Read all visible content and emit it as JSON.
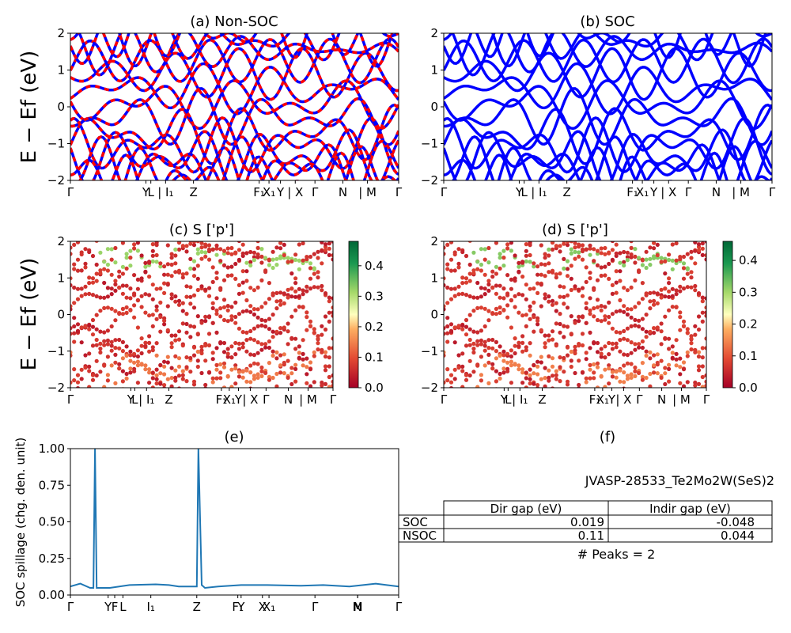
{
  "material_id": "JVASP-28533_Te2Mo2W(SeS)2",
  "colors": {
    "nonsoc_up": "#ff0000",
    "nonsoc_dn": "#0000ff",
    "soc": "#0000ff",
    "spillage": "#1f77b4"
  },
  "axis_labels": {
    "band_ylabel": "E − Ef (eV)",
    "spillage_ylabel": "SOC spillage (chg. den. unit)"
  },
  "kpath_labels": [
    "Γ",
    "Y|L",
    "L|I1",
    "Z",
    "F1",
    "X1",
    "Y|X",
    "Γ",
    "N|M",
    "Γ"
  ],
  "chart_data": [
    {
      "type": "line",
      "title": "(a) Non-SOC",
      "xlabel": "",
      "ylabel": "E − Ef (eV)",
      "ylim": [
        -2,
        2
      ],
      "yticks": [
        "−2",
        "−1",
        "0",
        "1",
        "2"
      ],
      "xticks": [
        "Γ",
        "YL",
        "L",
        "I1",
        "Z",
        "F1",
        "X1",
        "Y",
        "X",
        "Γ",
        "N",
        "M",
        "Γ"
      ],
      "series": [
        {
          "values": "bands"
        },
        {
          "values": "bands"
        }
      ],
      "notes_visible": "dashed red/blue bands"
    },
    {
      "type": "line",
      "title": "(b) SOC",
      "xlabel": "",
      "ylabel": "",
      "ylim": [
        -2,
        2
      ],
      "yticks": [
        "−2",
        "−1",
        "0",
        "1",
        "2"
      ],
      "xticks": [
        "Γ",
        "YL",
        "L",
        "I1",
        "Z",
        "F1",
        "X1",
        "Y",
        "X",
        "Γ",
        "N",
        "M",
        "Γ"
      ],
      "series": [
        {
          "values": "bands"
        }
      ]
    },
    {
      "type": "scatter",
      "title": "(c)  S ['p']",
      "xlabel": "",
      "ylabel": "E − Ef (eV)",
      "ylim": [
        -2,
        2
      ],
      "yticks": [
        "−2",
        "−1",
        "0",
        "1",
        "2"
      ],
      "colorbar": {
        "range": [
          0.0,
          0.48
        ],
        "ticks": [
          "0.0",
          "0.1",
          "0.2",
          "0.3",
          "0.4"
        ]
      }
    },
    {
      "type": "scatter",
      "title": "(d) S ['p']",
      "xlabel": "",
      "ylabel": "",
      "ylim": [
        -2,
        2
      ],
      "yticks": [
        "−2",
        "−1",
        "0",
        "1",
        "2"
      ],
      "colorbar": {
        "range": [
          0.0,
          0.46
        ],
        "ticks": [
          "0.0",
          "0.1",
          "0.2",
          "0.3",
          "0.4"
        ]
      }
    },
    {
      "type": "line",
      "title": "(e)",
      "xlabel": "",
      "ylabel": "SOC spillage (chg. den. unit)",
      "ylim": [
        0.0,
        1.03
      ],
      "yticks": [
        "0.00",
        "0.25",
        "0.50",
        "0.75",
        "1.00"
      ],
      "xticks": [
        "Γ",
        "Y",
        "F",
        "L",
        "I1",
        "Z",
        "F1",
        "Y",
        "X",
        "X1",
        "Γ",
        "N",
        "M",
        "Γ"
      ],
      "series": [
        {
          "x": [
            0,
            0.03,
            0.06,
            0.07,
            0.075,
            0.08,
            0.09,
            0.12,
            0.18,
            0.26,
            0.3,
            0.33,
            0.385,
            0.39,
            0.4,
            0.41,
            0.45,
            0.52,
            0.6,
            0.7,
            0.77,
            0.85,
            0.93,
            1.0
          ],
          "y": [
            0.06,
            0.08,
            0.05,
            0.05,
            1.03,
            0.05,
            0.05,
            0.05,
            0.07,
            0.075,
            0.07,
            0.06,
            0.06,
            1.03,
            0.07,
            0.05,
            0.06,
            0.07,
            0.07,
            0.065,
            0.07,
            0.06,
            0.08,
            0.06
          ]
        }
      ]
    },
    {
      "type": "table",
      "title": "(f)",
      "subtitle": "JVASP-28533_Te2Mo2W(SeS)2",
      "columns": [
        "",
        "Dir gap (eV)",
        "Indir gap (eV)"
      ],
      "rows": [
        [
          "SOC",
          "0.019",
          "-0.048"
        ],
        [
          "NSOC",
          "0.11",
          "0.044"
        ]
      ],
      "footer": "# Peaks = 2"
    }
  ]
}
